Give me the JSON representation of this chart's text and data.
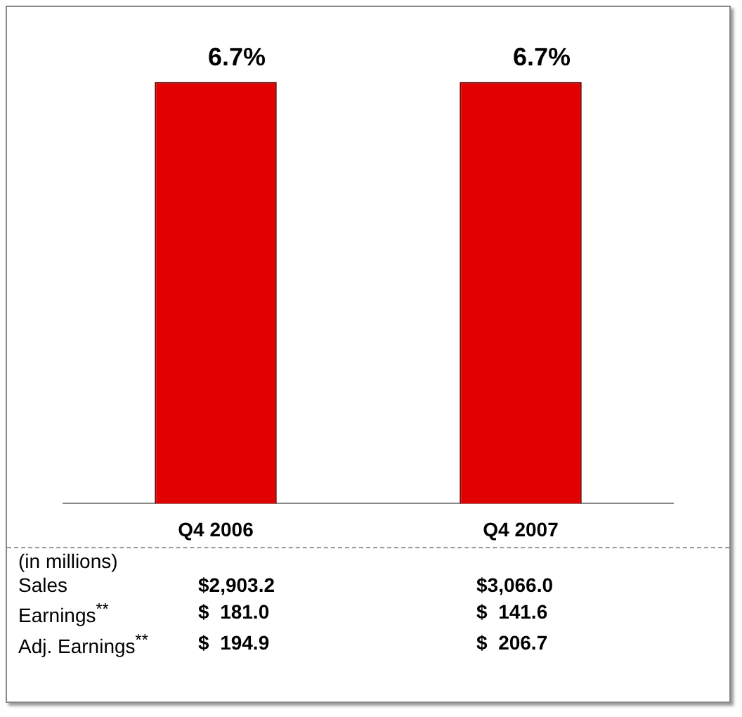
{
  "chart_data": {
    "type": "bar",
    "categories": [
      "Q4 2006",
      "Q4 2007"
    ],
    "values": [
      6.7,
      6.7
    ],
    "value_labels": [
      "6.7%",
      "6.7%"
    ],
    "color": "#e00000",
    "grid": false,
    "legend": false,
    "tick_labels": "x",
    "annotations": [
      "(in millions)",
      "Sales",
      "$2,903.2",
      "$3,066.0",
      "Earnings$^{**}$",
      "$  181.0",
      "$  141.6",
      "Adj. Earnings$^{**}$",
      "$  194.9",
      "$  206.7"
    ]
  }
}
